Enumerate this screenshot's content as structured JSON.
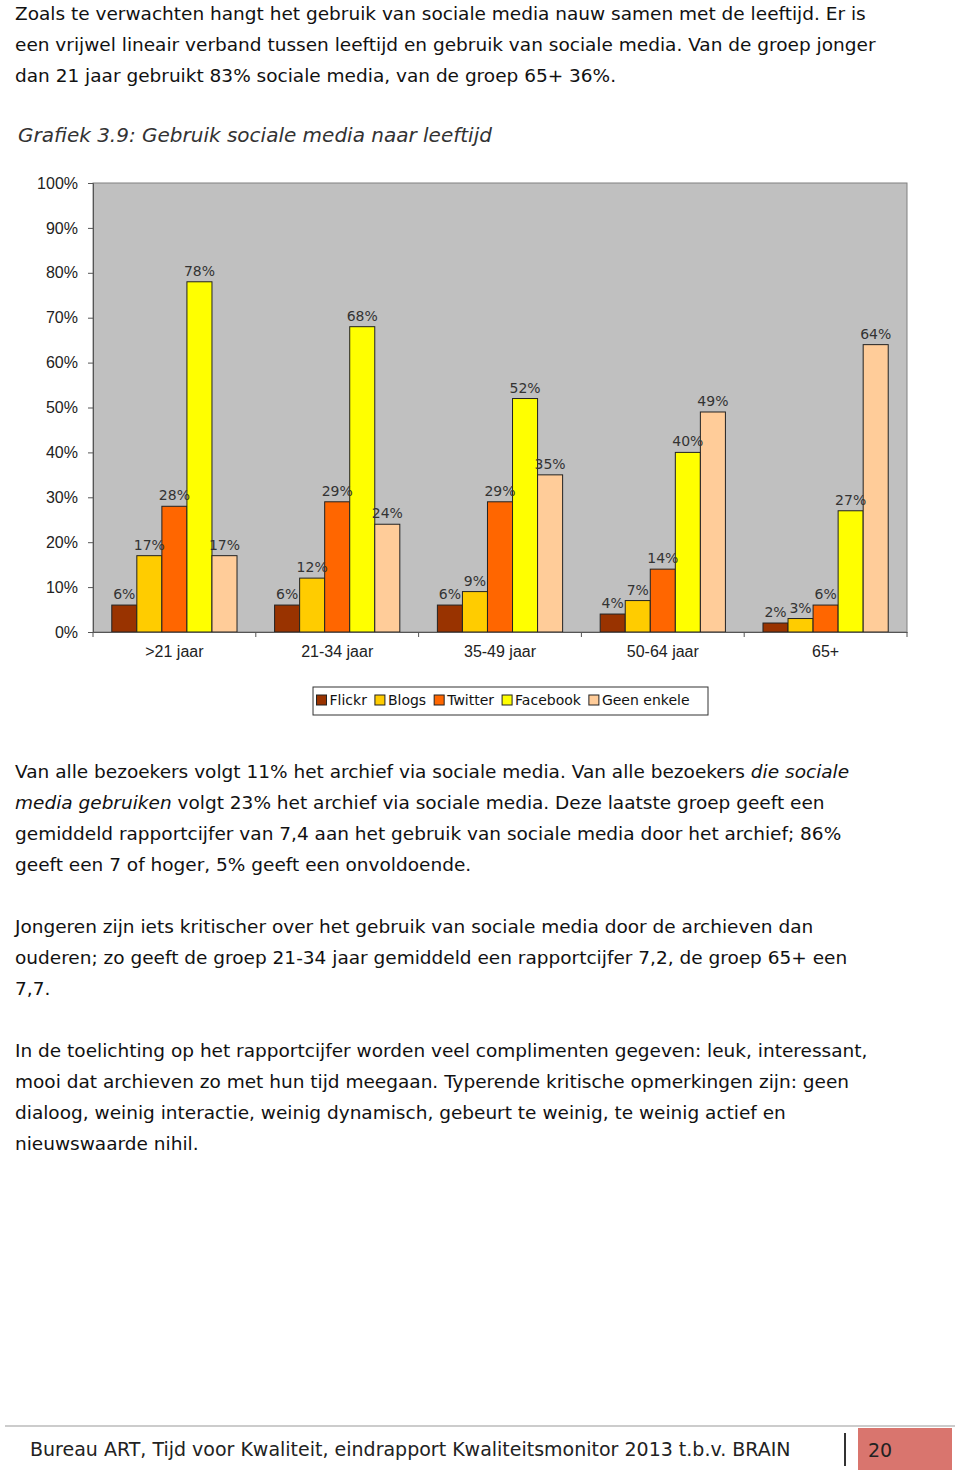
{
  "document": {
    "paragraphs_before": [
      [
        [
          {
            "text": "Zoals te verwachten hangt het gebruik van sociale media nauw samen met de leeftijd. Er is",
            "italic": false
          }
        ],
        [
          {
            "text": "een vrijwel lineair verband tussen leeftijd en gebruik van sociale media. Van de groep jonger",
            "italic": false
          }
        ],
        [
          {
            "text": "dan 21 jaar gebruikt 83% sociale media, van de groep 65+ 36%.",
            "italic": false
          }
        ]
      ]
    ],
    "paragraphs_after": [
      [
        [
          {
            "text": "Van alle bezoekers volgt 11% het archief via sociale media. Van alle bezoekers ",
            "italic": false
          },
          {
            "text": "die sociale",
            "italic": true
          }
        ],
        [
          {
            "text": "media gebruiken",
            "italic": true
          },
          {
            "text": " volgt 23% het archief via sociale media. Deze laatste groep geeft een",
            "italic": false
          }
        ],
        [
          {
            "text": "gemiddeld rapportcijfer van 7,4 aan het gebruik van sociale media door het archief; 86%",
            "italic": false
          }
        ],
        [
          {
            "text": "geeft een 7 of hoger, 5% geeft een onvoldoende.",
            "italic": false
          }
        ]
      ],
      [
        [
          {
            "text": "Jongeren zijn iets kritischer over het gebruik van sociale media door de archieven dan",
            "italic": false
          }
        ],
        [
          {
            "text": "ouderen; zo geeft de groep 21-34 jaar gemiddeld een rapportcijfer 7,2, de groep 65+ een",
            "italic": false
          }
        ],
        [
          {
            "text": "7,7.",
            "italic": false
          }
        ]
      ],
      [
        [
          {
            "text": "In de toelichting op het rapportcijfer worden veel complimenten gegeven: leuk, interessant,",
            "italic": false
          }
        ],
        [
          {
            "text": "mooi dat archieven zo met hun tijd meegaan. Typerende kritische opmerkingen zijn: geen",
            "italic": false
          }
        ],
        [
          {
            "text": "dialoog, weinig interactie, weinig dynamisch, gebeurt te weinig, te weinig actief en",
            "italic": false
          }
        ],
        [
          {
            "text": "nieuwswaarde nihil.",
            "italic": false
          }
        ]
      ]
    ],
    "footer": {
      "text": "Bureau ART, Tijd voor Kwaliteit, eindrapport Kwaliteitsmonitor 2013 t.b.v. BRAIN",
      "page": "20"
    }
  },
  "chart_data": {
    "type": "bar",
    "title": "Grafiek 3.9: Gebruik sociale media naar leeftijd",
    "categories": [
      ">21 jaar",
      "21-34 jaar",
      "35-49 jaar",
      "50-64 jaar",
      "65+"
    ],
    "series": [
      {
        "name": "Flickr",
        "color": "#993300",
        "values": [
          6,
          6,
          6,
          4,
          2
        ],
        "value_labels": [
          "6%",
          "6%",
          "6%",
          "4%",
          "2%"
        ]
      },
      {
        "name": "Blogs",
        "color": "#ffcc00",
        "values": [
          17,
          12,
          9,
          7,
          3
        ],
        "value_labels": [
          "17%",
          "12%",
          "9%",
          "7%",
          "3%"
        ]
      },
      {
        "name": "Twitter",
        "color": "#ff6600",
        "values": [
          28,
          29,
          29,
          14,
          6
        ],
        "value_labels": [
          "28%",
          "29%",
          "29%",
          "14%",
          "6%"
        ]
      },
      {
        "name": "Facebook",
        "color": "#ffff00",
        "values": [
          78,
          68,
          52,
          40,
          27
        ],
        "value_labels": [
          "78%",
          "68%",
          "52%",
          "40%",
          "27%"
        ]
      },
      {
        "name": "Geen enkele",
        "color": "#ffcc99",
        "values": [
          17,
          24,
          35,
          49,
          64
        ],
        "value_labels": [
          "17%",
          "24%",
          "35%",
          "49%",
          "64%"
        ]
      }
    ],
    "ylim": [
      0,
      100
    ],
    "yticks": [
      {
        "value": 0,
        "label": "0%"
      },
      {
        "value": 10,
        "label": "10%"
      },
      {
        "value": 20,
        "label": "20%"
      },
      {
        "value": 30,
        "label": "30%"
      },
      {
        "value": 40,
        "label": "40%"
      },
      {
        "value": 50,
        "label": "50%"
      },
      {
        "value": 60,
        "label": "60%"
      },
      {
        "value": 70,
        "label": "70%"
      },
      {
        "value": 80,
        "label": "80%"
      },
      {
        "value": 90,
        "label": "90%"
      },
      {
        "value": 100,
        "label": "100%"
      }
    ],
    "grid": false,
    "data_labels": true,
    "legend": "bottom"
  }
}
